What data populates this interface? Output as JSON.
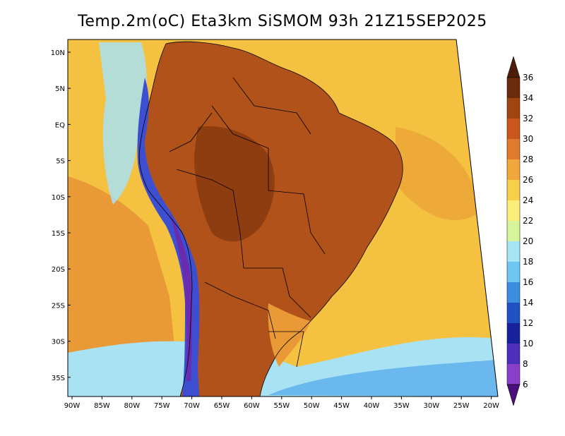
{
  "title": "Temp.2m(oC) Eta3km SiSMOM 93h 21Z15SEP2025",
  "latitude_ticks": [
    "10N",
    "5N",
    "EQ",
    "5S",
    "10S",
    "15S",
    "20S",
    "25S",
    "30S",
    "35S"
  ],
  "longitude_ticks": [
    "90W",
    "85W",
    "80W",
    "75W",
    "70W",
    "65W",
    "60W",
    "55W",
    "50W",
    "45W",
    "40W",
    "35W",
    "30W",
    "25W",
    "20W"
  ],
  "colorbar": {
    "labels": [
      "36",
      "34",
      "32",
      "30",
      "28",
      "26",
      "24",
      "22",
      "20",
      "18",
      "16",
      "14",
      "12",
      "10",
      "8",
      "6"
    ],
    "colors": [
      "#6b2a0c",
      "#a1440f",
      "#c9561a",
      "#e07a2c",
      "#f2a73c",
      "#f8cf48",
      "#fbef7a",
      "#d6f49a",
      "#a6e5f5",
      "#6cc6f1",
      "#3b8fe0",
      "#1f52c0",
      "#17229a",
      "#4e2fba",
      "#8a3fc8",
      "#6a1c9e"
    ],
    "top_arrow_color": "#4d1c08",
    "bottom_arrow_color": "#4a0f7a"
  },
  "colors": {
    "ocean_base": "#f4c240",
    "ocean_warm": "#e99a36",
    "ocean_cool": "#a9e2f3",
    "ocean_cold": "#6ab8ee",
    "land_hot": "#b0521a",
    "land_very_hot": "#8e3d10",
    "andes": "#3d4fd0",
    "andes_cold": "#6a2bb0"
  }
}
